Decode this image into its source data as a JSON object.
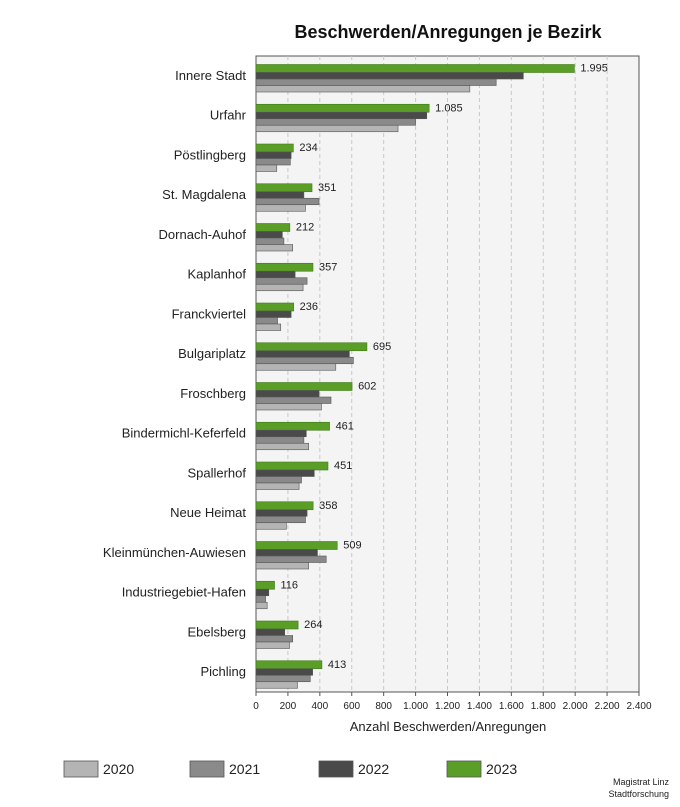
{
  "chart_data": {
    "type": "bar",
    "orientation": "horizontal",
    "title": "Beschwerden/Anregungen je Bezirk",
    "xlabel": "Anzahl Beschwerden/Anregungen",
    "ylabel": "",
    "xlim": [
      0,
      2400
    ],
    "x_ticks": [
      0,
      200,
      400,
      600,
      800,
      1000,
      1200,
      1400,
      1600,
      1800,
      2000,
      2200,
      2400
    ],
    "x_tick_labels": [
      "0",
      "200",
      "400",
      "600",
      "800",
      "1.000",
      "1.200",
      "1.400",
      "1.600",
      "1.800",
      "2.000",
      "2.200",
      "2.400"
    ],
    "grid": "vertical dashed",
    "legend_position": "bottom",
    "categories": [
      "Innere Stadt",
      "Urfahr",
      "Pöstlingberg",
      "St. Magdalena",
      "Dornach-Auhof",
      "Kaplanhof",
      "Franckviertel",
      "Bulgariplatz",
      "Froschberg",
      "Bindermichl-Keferfeld",
      "Spallerhof",
      "Neue Heimat",
      "Kleinmünchen-Auwiesen",
      "Industriegebiet-Hafen",
      "Ebelsberg",
      "Pichling"
    ],
    "series": [
      {
        "name": "2020",
        "color": "#b4b4b4",
        "values": [
          1340,
          890,
          130,
          310,
          230,
          295,
          155,
          500,
          410,
          330,
          270,
          190,
          330,
          70,
          210,
          260
        ]
      },
      {
        "name": "2021",
        "color": "#8a8a8a",
        "values": [
          1505,
          1000,
          215,
          395,
          175,
          320,
          135,
          610,
          470,
          300,
          285,
          310,
          440,
          60,
          230,
          340
        ]
      },
      {
        "name": "2022",
        "color": "#4a4a4a",
        "values": [
          1675,
          1070,
          220,
          300,
          165,
          245,
          220,
          585,
          395,
          315,
          365,
          320,
          385,
          80,
          180,
          355
        ]
      },
      {
        "name": "2023",
        "color": "#5a9e28",
        "values": [
          1995,
          1085,
          234,
          351,
          212,
          357,
          236,
          695,
          602,
          461,
          451,
          358,
          509,
          116,
          264,
          413
        ],
        "data_labels": [
          "1.995",
          "1.085",
          "234",
          "351",
          "212",
          "357",
          "236",
          "695",
          "602",
          "461",
          "451",
          "358",
          "509",
          "116",
          "264",
          "413"
        ]
      }
    ]
  },
  "credit": {
    "line1": "Magistrat Linz",
    "line2": "Stadtforschung"
  }
}
